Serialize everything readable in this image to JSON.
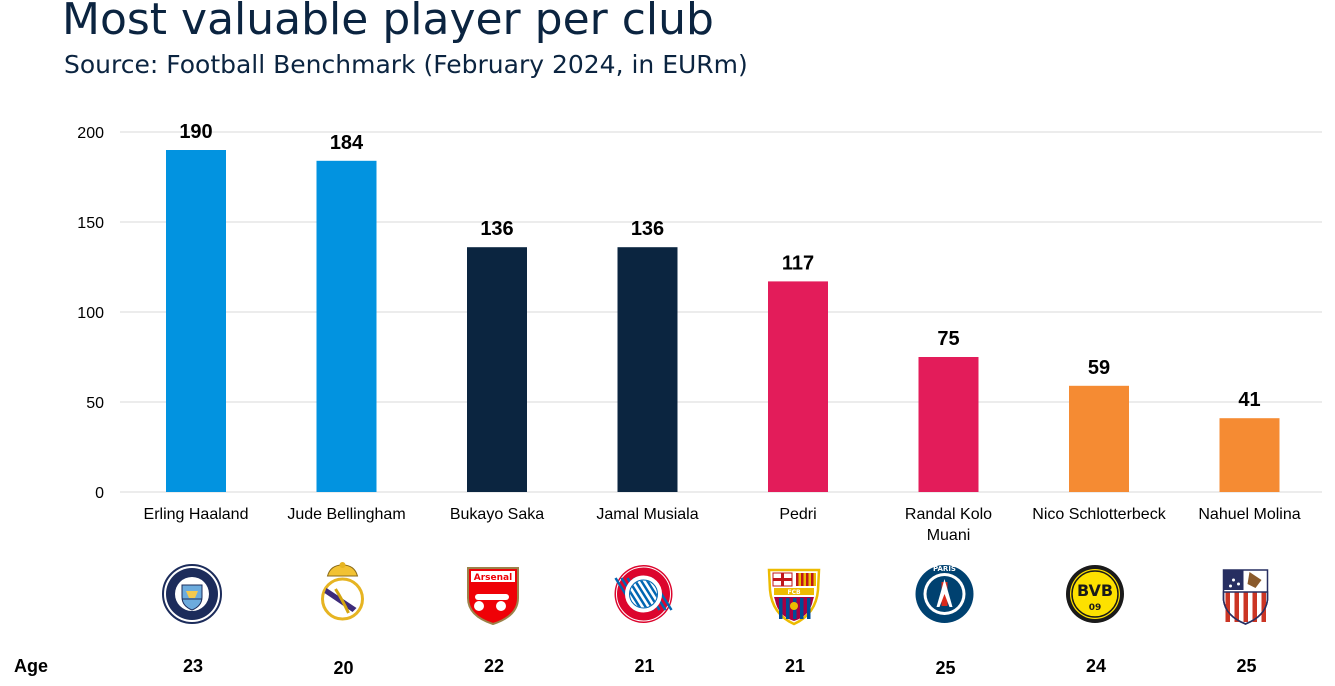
{
  "title": "Most valuable player per club",
  "subtitle": "Source: Football Benchmark (February 2024, in EURm)",
  "age_label": "Age",
  "chart_data": {
    "type": "bar",
    "categories": [
      "Erling Haaland",
      "Jude Bellingham",
      "Bukayo Saka",
      "Jamal Musiala",
      "Pedri",
      "Randal Kolo Muani",
      "Nico Schlotterbeck",
      "Nahuel Molina"
    ],
    "category_lines": [
      [
        "Erling Haaland"
      ],
      [
        "Jude Bellingham"
      ],
      [
        "Bukayo Saka"
      ],
      [
        "Jamal Musiala"
      ],
      [
        "Pedri"
      ],
      [
        "Randal Kolo",
        "Muani"
      ],
      [
        "Nico Schlotterbeck"
      ],
      [
        "Nahuel Molina"
      ]
    ],
    "values": [
      190,
      184,
      136,
      136,
      117,
      75,
      59,
      41
    ],
    "data_labels": [
      "190",
      "184",
      "136",
      "136",
      "117",
      "75",
      "59",
      "41"
    ],
    "colors": [
      "#0293e0",
      "#0293e0",
      "#0b2540",
      "#0b2540",
      "#e31c5a",
      "#e31c5a",
      "#f58b33",
      "#f58b33"
    ],
    "ylim": [
      0,
      200
    ],
    "yticks": [
      0,
      50,
      100,
      150,
      200
    ],
    "grid": true,
    "ages": [
      "23",
      "20",
      "22",
      "21",
      "21",
      "25",
      "24",
      "25"
    ],
    "club_icons": [
      "manchester-city-crest",
      "real-madrid-crest",
      "arsenal-crest",
      "bayern-munich-crest",
      "fc-barcelona-crest",
      "paris-saint-germain-crest",
      "borussia-dortmund-crest",
      "atletico-madrid-crest"
    ],
    "xlabel": "",
    "ylabel": ""
  }
}
